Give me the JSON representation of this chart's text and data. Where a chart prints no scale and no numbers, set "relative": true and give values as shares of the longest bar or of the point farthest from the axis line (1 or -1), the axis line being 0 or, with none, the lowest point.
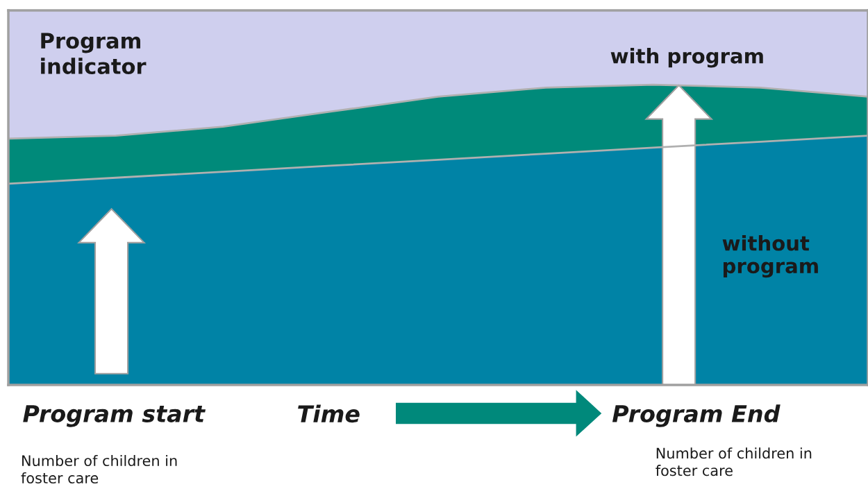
{
  "chart_data": {
    "type": "area",
    "relative": true,
    "stacked": true,
    "categories": [
      null,
      null,
      null,
      null,
      null,
      null,
      null,
      null,
      null
    ],
    "series": [
      {
        "name": "without program",
        "color": "#0083a6",
        "values": [
          0.67,
          0.69,
          0.71,
          0.73,
          0.75,
          0.77,
          0.79,
          0.81,
          0.83
        ]
      },
      {
        "name": "with program",
        "color": "#008a7a",
        "values": [
          0.15,
          0.14,
          0.15,
          0.18,
          0.21,
          0.22,
          0.21,
          0.18,
          0.13
        ]
      }
    ],
    "annotations": [
      "Program indicator",
      "Program start",
      "Time",
      "Program End",
      "Number of children in foster care",
      "Number of children in foster care"
    ]
  }
}
